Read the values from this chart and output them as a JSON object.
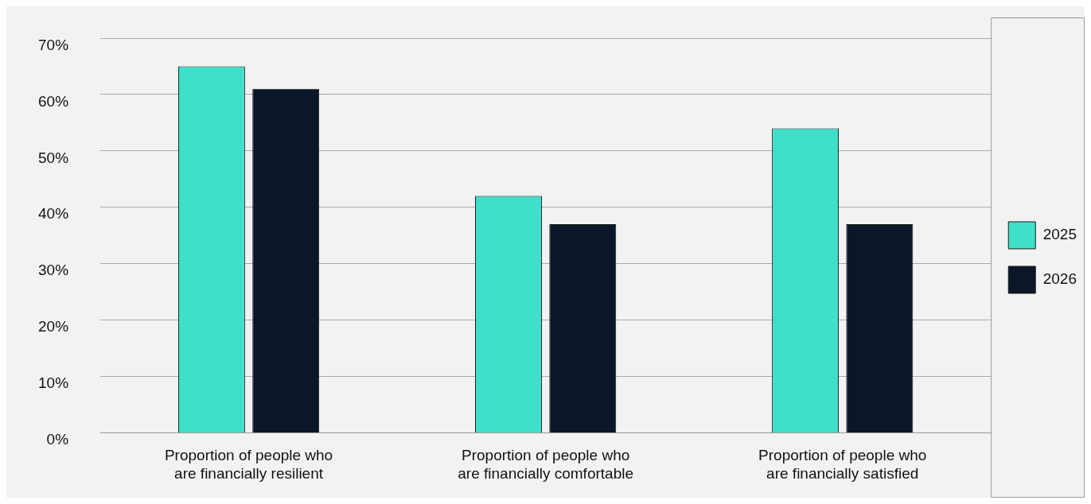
{
  "chart_data": {
    "type": "bar",
    "categories": [
      "Proportion of people who are financially resilient",
      "Proportion of people who are financially comfortable",
      "Proportion of people who are financially satisfied"
    ],
    "series": [
      {
        "name": "2025",
        "color": "#40dfca",
        "values": [
          65,
          42,
          54
        ]
      },
      {
        "name": "2026",
        "color": "#0b1629",
        "values": [
          61,
          37,
          37
        ]
      }
    ],
    "ylim": [
      0,
      70
    ],
    "yticks": [
      {
        "value": 0,
        "label": "0%"
      },
      {
        "value": 10,
        "label": "10%"
      },
      {
        "value": 20,
        "label": "20%"
      },
      {
        "value": 30,
        "label": "30%"
      },
      {
        "value": 40,
        "label": "40%"
      },
      {
        "value": 50,
        "label": "50%"
      },
      {
        "value": 60,
        "label": "60%"
      },
      {
        "value": 70,
        "label": "70%"
      }
    ],
    "grid": "y",
    "legend": "right"
  }
}
